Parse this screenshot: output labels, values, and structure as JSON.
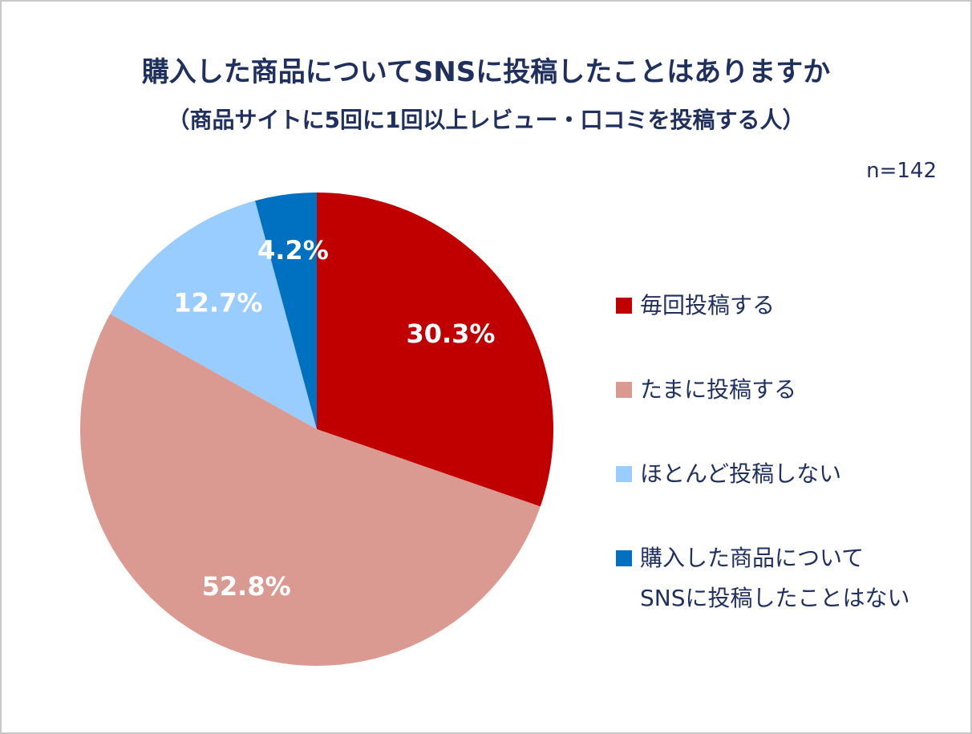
{
  "title": "購入した商品についてSNSに投稿したことはありますか",
  "subtitle": "（商品サイトに5回に1回以上レビュー・口コミを投稿する人）",
  "n_label": "n=142",
  "chart_data": {
    "type": "pie",
    "title": "購入した商品についてSNSに投稿したことはありますか",
    "subtitle": "（商品サイトに5回に1回以上レビュー・口コミを投稿する人）",
    "categories": [
      "毎回投稿する",
      "たまに投稿する",
      "ほとんど投稿しない",
      "購入した商品についてSNSに投稿したことはない"
    ],
    "values": [
      30.3,
      52.8,
      12.7,
      4.2
    ],
    "value_labels": [
      "30.3%",
      "52.8%",
      "12.7%",
      "4.2%"
    ],
    "colors": [
      "#c00000",
      "#da9a92",
      "#99ccff",
      "#0070c0"
    ],
    "start_angle": "12 o'clock",
    "direction": "clockwise",
    "legend_position": "right"
  },
  "legend": [
    {
      "lines": [
        "毎回投稿する"
      ],
      "color": "#c00000"
    },
    {
      "lines": [
        "たまに投稿する"
      ],
      "color": "#da9a92"
    },
    {
      "lines": [
        "ほとんど投稿しない"
      ],
      "color": "#99ccff"
    },
    {
      "lines": [
        "購入した商品について",
        "SNSに投稿したことはない"
      ],
      "color": "#0070c0"
    }
  ]
}
